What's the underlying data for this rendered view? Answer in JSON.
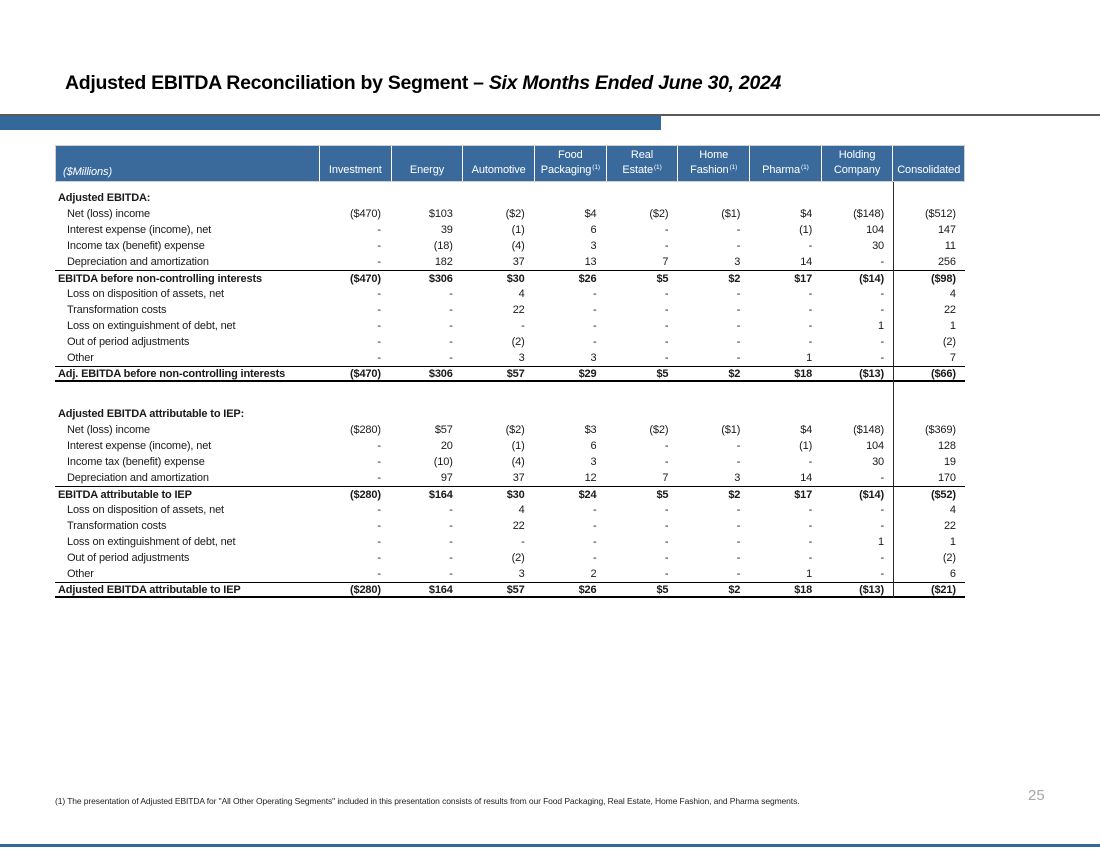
{
  "slide": {
    "title_main": "Adjusted EBITDA Reconciliation by Segment – ",
    "title_italic": "Six Months Ended June 30, 2024",
    "footnote": "(1) The presentation of Adjusted EBITDA for \"All Other Operating Segments\" included in this presentation consists of results from our Food Packaging, Real Estate, Home Fashion, and Pharma segments.",
    "page_number": "25"
  },
  "colors": {
    "header_blue": "#3a6a9c",
    "accent_bar_blue": "#34679a",
    "title_rule_gray": "#595959",
    "page_number_gray": "#a8a8a8"
  },
  "table": {
    "unit_label": "($Millions)",
    "columns": [
      {
        "lines": [
          "Investment"
        ],
        "sup": ""
      },
      {
        "lines": [
          "Energy"
        ],
        "sup": ""
      },
      {
        "lines": [
          "Automotive"
        ],
        "sup": ""
      },
      {
        "lines": [
          "Food",
          "Packaging"
        ],
        "sup": "(1)"
      },
      {
        "lines": [
          "Real",
          "Estate"
        ],
        "sup": "(1)"
      },
      {
        "lines": [
          "Home",
          "Fashion"
        ],
        "sup": "(1)"
      },
      {
        "lines": [
          "Pharma"
        ],
        "sup": "(1)"
      },
      {
        "lines": [
          "Holding",
          "Company"
        ],
        "sup": ""
      },
      {
        "lines": [
          "Consolidated"
        ],
        "sup": ""
      }
    ],
    "sections": [
      {
        "heading": "Adjusted EBITDA:",
        "rows": [
          {
            "label": "Net (loss) income",
            "style": "normal",
            "values": [
              "($470)",
              "$103",
              "($2)",
              "$4",
              "($2)",
              "($1)",
              "$4",
              "($148)",
              "($512)"
            ]
          },
          {
            "label": "Interest expense (income), net",
            "style": "normal",
            "values": [
              "-",
              "39",
              "(1)",
              "6",
              "-",
              "-",
              "(1)",
              "104",
              "147"
            ]
          },
          {
            "label": "Income tax (benefit) expense",
            "style": "normal",
            "values": [
              "-",
              "(18)",
              "(4)",
              "3",
              "-",
              "-",
              "-",
              "30",
              "11"
            ]
          },
          {
            "label": "Depreciation and amortization",
            "style": "normal",
            "values": [
              "-",
              "182",
              "37",
              "13",
              "7",
              "3",
              "14",
              "-",
              "256"
            ]
          },
          {
            "label": "EBITDA before non-controlling interests",
            "style": "subtotal",
            "values": [
              "($470)",
              "$306",
              "$30",
              "$26",
              "$5",
              "$2",
              "$17",
              "($14)",
              "($98)"
            ]
          },
          {
            "label": "Loss on disposition of assets, net",
            "style": "normal",
            "values": [
              "-",
              "-",
              "4",
              "-",
              "-",
              "-",
              "-",
              "-",
              "4"
            ]
          },
          {
            "label": "Transformation costs",
            "style": "normal",
            "values": [
              "-",
              "-",
              "22",
              "-",
              "-",
              "-",
              "-",
              "-",
              "22"
            ]
          },
          {
            "label": "Loss on extinguishment of debt, net",
            "style": "normal",
            "values": [
              "-",
              "-",
              "-",
              "-",
              "-",
              "-",
              "-",
              "1",
              "1"
            ]
          },
          {
            "label": "Out of period adjustments",
            "style": "normal",
            "values": [
              "-",
              "-",
              "(2)",
              "-",
              "-",
              "-",
              "-",
              "-",
              "(2)"
            ]
          },
          {
            "label": "Other",
            "style": "normal",
            "values": [
              "-",
              "-",
              "3",
              "3",
              "-",
              "-",
              "1",
              "-",
              "7"
            ]
          },
          {
            "label": "Adj. EBITDA before non-controlling interests",
            "style": "total",
            "values": [
              "($470)",
              "$306",
              "$57",
              "$29",
              "$5",
              "$2",
              "$18",
              "($13)",
              "($66)"
            ]
          }
        ]
      },
      {
        "heading": "Adjusted EBITDA attributable to IEP:",
        "rows": [
          {
            "label": "Net (loss) income",
            "style": "normal",
            "values": [
              "($280)",
              "$57",
              "($2)",
              "$3",
              "($2)",
              "($1)",
              "$4",
              "($148)",
              "($369)"
            ]
          },
          {
            "label": "Interest expense (income), net",
            "style": "normal",
            "values": [
              "-",
              "20",
              "(1)",
              "6",
              "-",
              "-",
              "(1)",
              "104",
              "128"
            ]
          },
          {
            "label": "Income tax (benefit) expense",
            "style": "normal",
            "values": [
              "-",
              "(10)",
              "(4)",
              "3",
              "-",
              "-",
              "-",
              "30",
              "19"
            ]
          },
          {
            "label": "Depreciation and amortization",
            "style": "normal",
            "values": [
              "-",
              "97",
              "37",
              "12",
              "7",
              "3",
              "14",
              "-",
              "170"
            ]
          },
          {
            "label": "EBITDA attributable to IEP",
            "style": "subtotal",
            "values": [
              "($280)",
              "$164",
              "$30",
              "$24",
              "$5",
              "$2",
              "$17",
              "($14)",
              "($52)"
            ]
          },
          {
            "label": "Loss on disposition of assets, net",
            "style": "normal",
            "values": [
              "-",
              "-",
              "4",
              "-",
              "-",
              "-",
              "-",
              "-",
              "4"
            ]
          },
          {
            "label": "Transformation costs",
            "style": "normal",
            "values": [
              "-",
              "-",
              "22",
              "-",
              "-",
              "-",
              "-",
              "-",
              "22"
            ]
          },
          {
            "label": "Loss on extinguishment of debt, net",
            "style": "normal",
            "values": [
              "-",
              "-",
              "-",
              "-",
              "-",
              "-",
              "-",
              "1",
              "1"
            ]
          },
          {
            "label": "Out of period adjustments",
            "style": "normal",
            "values": [
              "-",
              "-",
              "(2)",
              "-",
              "-",
              "-",
              "-",
              "-",
              "(2)"
            ]
          },
          {
            "label": "Other",
            "style": "normal",
            "values": [
              "-",
              "-",
              "3",
              "2",
              "-",
              "-",
              "1",
              "-",
              "6"
            ]
          },
          {
            "label": "Adjusted EBITDA attributable to IEP",
            "style": "total",
            "values": [
              "($280)",
              "$164",
              "$57",
              "$26",
              "$5",
              "$2",
              "$18",
              "($13)",
              "($21)"
            ]
          }
        ]
      }
    ]
  }
}
